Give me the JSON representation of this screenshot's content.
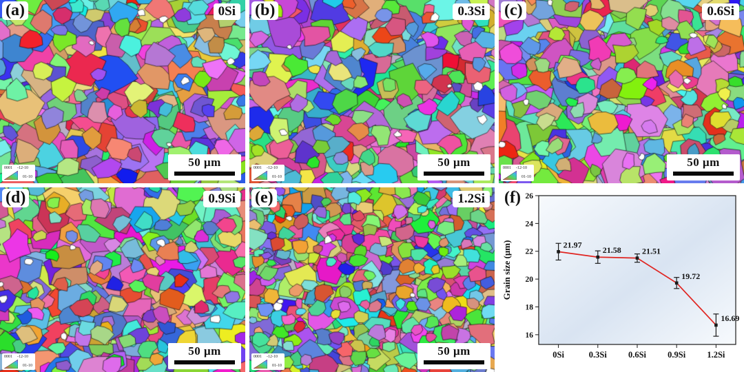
{
  "panels": [
    {
      "letter": "(a)",
      "alloy": "0Si"
    },
    {
      "letter": "(b)",
      "alloy": "0.3Si"
    },
    {
      "letter": "(c)",
      "alloy": "0.6Si"
    },
    {
      "letter": "(d)",
      "alloy": "0.9Si"
    },
    {
      "letter": "(e)",
      "alloy": "1.2Si"
    },
    {
      "letter": "(f)"
    }
  ],
  "scale_bar": {
    "label": "50 μm"
  },
  "ipf_legend": {
    "l1": "0001",
    "l2": "-12-10",
    "l3": "01-10"
  },
  "chart_data": {
    "type": "line",
    "categories": [
      "0Si",
      "0.3Si",
      "0.6Si",
      "0.9Si",
      "1.2Si"
    ],
    "values": [
      21.97,
      21.58,
      21.51,
      19.72,
      16.69
    ],
    "errors": [
      0.6,
      0.45,
      0.3,
      0.4,
      0.8
    ],
    "value_labels": [
      "21.97",
      "21.58",
      "21.51",
      "19.72",
      "16.69"
    ],
    "ylabel": "Grain size (μm)",
    "ylim": [
      15.3,
      26
    ],
    "yticks": [
      16,
      18,
      20,
      22,
      24,
      26
    ],
    "legend_position": "none",
    "grid": "off",
    "line_color": "#e02420",
    "marker_color": "#1a1a1a",
    "background": [
      "#f7fafd",
      "#d9e4f2"
    ]
  }
}
